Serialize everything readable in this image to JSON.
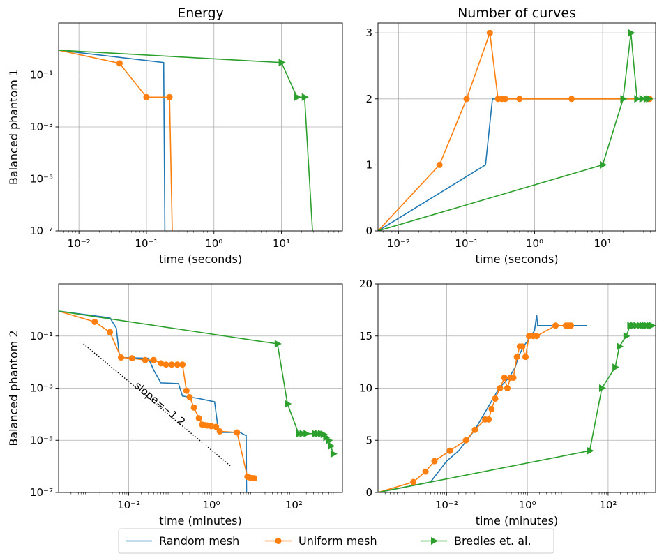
{
  "legend": {
    "placement": "bottom-center",
    "entries": [
      {
        "label": "Random mesh",
        "color": "#1f77b4",
        "marker": "none"
      },
      {
        "label": "Uniform mesh",
        "color": "#ff7f0e",
        "marker": "circle"
      },
      {
        "label": "Bredies et. al.",
        "color": "#2ca02c",
        "marker": "triangle-right"
      }
    ]
  },
  "chart_data": [
    {
      "id": "p1-energy",
      "type": "line",
      "title": "Energy",
      "ylabel": "Balanced phantom 1",
      "xlabel": "time (seconds)",
      "xscale": "log",
      "yscale": "log",
      "xlim": [
        0.005,
        80
      ],
      "ylim": [
        1e-07,
        10
      ],
      "xticks": [
        {
          "v": 0.01,
          "label": "10⁻²"
        },
        {
          "v": 0.1,
          "label": "10⁻¹"
        },
        {
          "v": 1,
          "label": "10⁰"
        },
        {
          "v": 10,
          "label": "10¹"
        }
      ],
      "yticks": [
        {
          "v": 1e-07,
          "label": "10⁻⁷"
        },
        {
          "v": 1e-05,
          "label": "10⁻⁵"
        },
        {
          "v": 0.001,
          "label": "10⁻³"
        },
        {
          "v": 0.1,
          "label": "10⁻¹"
        }
      ],
      "grid": true,
      "series": [
        {
          "name": "Random mesh",
          "color": "#1f77b4",
          "marker": "none",
          "points": [
            [
              0.005,
              0.9
            ],
            [
              0.18,
              0.3
            ],
            [
              0.19,
              1e-09
            ]
          ]
        },
        {
          "name": "Uniform mesh",
          "color": "#ff7f0e",
          "marker": "circle",
          "points": [
            [
              0.005,
              0.9
            ],
            [
              0.04,
              0.28
            ],
            [
              0.1,
              0.014
            ],
            [
              0.22,
              0.014
            ],
            [
              0.25,
              1e-09
            ]
          ]
        },
        {
          "name": "Bredies et. al.",
          "color": "#2ca02c",
          "marker": "triangle-right",
          "points": [
            [
              0.005,
              0.9
            ],
            [
              10,
              0.3
            ],
            [
              17,
              0.014
            ],
            [
              22,
              0.014
            ],
            [
              32,
              1e-09
            ]
          ]
        }
      ]
    },
    {
      "id": "p1-curves",
      "type": "line",
      "title": "Number of curves",
      "ylabel": "",
      "xlabel": "time (seconds)",
      "xscale": "log",
      "yscale": "linear",
      "xlim": [
        0.005,
        60
      ],
      "ylim": [
        0,
        3.15
      ],
      "xticks": [
        {
          "v": 0.01,
          "label": "10⁻²"
        },
        {
          "v": 0.1,
          "label": "10⁻¹"
        },
        {
          "v": 1,
          "label": "10⁰"
        },
        {
          "v": 10,
          "label": "10¹"
        }
      ],
      "yticks": [
        {
          "v": 0,
          "label": "0"
        },
        {
          "v": 1,
          "label": "1"
        },
        {
          "v": 2,
          "label": "2"
        },
        {
          "v": 3,
          "label": "3"
        }
      ],
      "grid": true,
      "series": [
        {
          "name": "Random mesh",
          "color": "#1f77b4",
          "marker": "none",
          "points": [
            [
              0.005,
              0
            ],
            [
              0.19,
              1
            ],
            [
              0.24,
              2
            ],
            [
              50,
              2
            ]
          ]
        },
        {
          "name": "Uniform mesh",
          "color": "#ff7f0e",
          "marker": "circle",
          "points": [
            [
              0.005,
              0
            ],
            [
              0.04,
              1
            ],
            [
              0.1,
              2
            ],
            [
              0.22,
              3
            ],
            [
              0.29,
              2
            ],
            [
              0.33,
              2
            ],
            [
              0.37,
              2
            ],
            [
              0.6,
              2
            ],
            [
              3.5,
              2
            ],
            [
              47,
              2
            ],
            [
              49,
              2
            ]
          ]
        },
        {
          "name": "Bredies et. al.",
          "color": "#2ca02c",
          "marker": "triangle-right",
          "points": [
            [
              0.005,
              0
            ],
            [
              10,
              1
            ],
            [
              20,
              2
            ],
            [
              26,
              3
            ],
            [
              32,
              2
            ],
            [
              38,
              2
            ],
            [
              44,
              2
            ],
            [
              48,
              2
            ]
          ]
        }
      ]
    },
    {
      "id": "p2-energy",
      "type": "line",
      "title": "",
      "ylabel": "Balanced phantom 2",
      "xlabel": "time (minutes)",
      "xscale": "log",
      "yscale": "log",
      "xlim": [
        0.0002,
        1500
      ],
      "ylim": [
        1e-07,
        10
      ],
      "xticks": [
        {
          "v": 0.01,
          "label": "10⁻²"
        },
        {
          "v": 1,
          "label": "10⁰"
        },
        {
          "v": 100,
          "label": "10²"
        }
      ],
      "yticks": [
        {
          "v": 1e-07,
          "label": "10⁻⁷"
        },
        {
          "v": 1e-05,
          "label": "10⁻⁵"
        },
        {
          "v": 0.001,
          "label": "10⁻³"
        },
        {
          "v": 0.1,
          "label": "10⁻¹"
        }
      ],
      "grid": true,
      "annotation": {
        "text": "slope=−1.2",
        "line_from": [
          0.0008,
          0.05
        ],
        "line_to": [
          3,
          1e-06
        ],
        "label_at": [
          0.05,
          0.0002
        ]
      },
      "series": [
        {
          "name": "Random mesh",
          "color": "#1f77b4",
          "marker": "none",
          "points": [
            [
              0.0002,
              0.9
            ],
            [
              0.0035,
              0.5
            ],
            [
              0.005,
              0.2
            ],
            [
              0.006,
              0.015
            ],
            [
              0.03,
              0.014
            ],
            [
              0.04,
              0.005
            ],
            [
              0.06,
              0.0016
            ],
            [
              0.16,
              0.0015
            ],
            [
              0.2,
              0.0005
            ],
            [
              0.5,
              0.0004
            ],
            [
              1.2,
              0.0003
            ],
            [
              1.5,
              2e-05
            ],
            [
              5,
              2e-05
            ],
            [
              7,
              1.5e-05
            ],
            [
              7.2,
              1e-08
            ]
          ]
        },
        {
          "name": "Uniform mesh",
          "color": "#ff7f0e",
          "marker": "circle",
          "points": [
            [
              0.0002,
              0.9
            ],
            [
              0.0015,
              0.35
            ],
            [
              0.0035,
              0.14
            ],
            [
              0.0065,
              0.015
            ],
            [
              0.012,
              0.014
            ],
            [
              0.025,
              0.012
            ],
            [
              0.04,
              0.012
            ],
            [
              0.06,
              0.009
            ],
            [
              0.08,
              0.008
            ],
            [
              0.11,
              0.008
            ],
            [
              0.15,
              0.008
            ],
            [
              0.2,
              0.008
            ],
            [
              0.25,
              0.0008
            ],
            [
              0.3,
              0.00045
            ],
            [
              0.38,
              0.00018
            ],
            [
              0.5,
              7e-05
            ],
            [
              0.6,
              4e-05
            ],
            [
              0.7,
              3.8e-05
            ],
            [
              0.8,
              3.7e-05
            ],
            [
              1.0,
              3.5e-05
            ],
            [
              1.3,
              3.3e-05
            ],
            [
              1.6,
              2.2e-05
            ],
            [
              4.2,
              2e-05
            ],
            [
              7.5,
              4e-07
            ],
            [
              9,
              3.6e-07
            ],
            [
              10,
              3.5e-07
            ],
            [
              11,
              3.5e-07
            ]
          ]
        },
        {
          "name": "Bredies et. al.",
          "color": "#2ca02c",
          "marker": "triangle-right",
          "points": [
            [
              0.0002,
              0.9
            ],
            [
              40,
              0.05
            ],
            [
              70,
              0.00025
            ],
            [
              130,
              1.8e-05
            ],
            [
              160,
              1.8e-05
            ],
            [
              200,
              1.8e-05
            ],
            [
              320,
              1.8e-05
            ],
            [
              380,
              1.8e-05
            ],
            [
              450,
              1.8e-05
            ],
            [
              520,
              1.7e-05
            ],
            [
              600,
              1.3e-05
            ],
            [
              700,
              1e-05
            ],
            [
              780,
              6e-06
            ],
            [
              900,
              3e-06
            ]
          ]
        }
      ]
    },
    {
      "id": "p2-curves",
      "type": "line",
      "title": "",
      "ylabel": "",
      "xlabel": "time (minutes)",
      "xscale": "log",
      "yscale": "linear",
      "xlim": [
        0.0002,
        1500
      ],
      "ylim": [
        0,
        20
      ],
      "xticks": [
        {
          "v": 0.01,
          "label": "10⁻²"
        },
        {
          "v": 1,
          "label": "10⁰"
        },
        {
          "v": 100,
          "label": "10²"
        }
      ],
      "yticks": [
        {
          "v": 0,
          "label": "0"
        },
        {
          "v": 5,
          "label": "5"
        },
        {
          "v": 10,
          "label": "10"
        },
        {
          "v": 15,
          "label": "15"
        },
        {
          "v": 20,
          "label": "20"
        }
      ],
      "grid": true,
      "series": [
        {
          "name": "Random mesh",
          "color": "#1f77b4",
          "marker": "none",
          "points": [
            [
              0.0002,
              0
            ],
            [
              0.004,
              1
            ],
            [
              0.01,
              3
            ],
            [
              0.02,
              4
            ],
            [
              0.05,
              6
            ],
            [
              0.1,
              8
            ],
            [
              0.2,
              10
            ],
            [
              0.35,
              11
            ],
            [
              0.5,
              12
            ],
            [
              0.6,
              13
            ],
            [
              0.8,
              14
            ],
            [
              1.0,
              14.5
            ],
            [
              1.2,
              15
            ],
            [
              1.5,
              15.5
            ],
            [
              1.7,
              17
            ],
            [
              1.8,
              16
            ],
            [
              5,
              16
            ],
            [
              30,
              16
            ]
          ]
        },
        {
          "name": "Uniform mesh",
          "color": "#ff7f0e",
          "marker": "circle",
          "points": [
            [
              0.0002,
              0
            ],
            [
              0.0015,
              1
            ],
            [
              0.003,
              2
            ],
            [
              0.005,
              3
            ],
            [
              0.012,
              4
            ],
            [
              0.03,
              5
            ],
            [
              0.05,
              6
            ],
            [
              0.09,
              7
            ],
            [
              0.11,
              7
            ],
            [
              0.13,
              8
            ],
            [
              0.16,
              9
            ],
            [
              0.21,
              10
            ],
            [
              0.27,
              11
            ],
            [
              0.32,
              10
            ],
            [
              0.38,
              11
            ],
            [
              0.45,
              11
            ],
            [
              0.55,
              13
            ],
            [
              0.65,
              14
            ],
            [
              0.75,
              14
            ],
            [
              0.9,
              13
            ],
            [
              1.1,
              15
            ],
            [
              1.4,
              15
            ],
            [
              1.7,
              15
            ],
            [
              5,
              16
            ],
            [
              9,
              16
            ],
            [
              10,
              16
            ],
            [
              11,
              16
            ],
            [
              12,
              16
            ]
          ]
        },
        {
          "name": "Bredies et. al.",
          "color": "#2ca02c",
          "marker": "triangle-right",
          "points": [
            [
              0.0002,
              0
            ],
            [
              35,
              4
            ],
            [
              70,
              10
            ],
            [
              150,
              12
            ],
            [
              190,
              14
            ],
            [
              280,
              15
            ],
            [
              350,
              16
            ],
            [
              420,
              16
            ],
            [
              500,
              16
            ],
            [
              600,
              16
            ],
            [
              700,
              16
            ],
            [
              800,
              16
            ],
            [
              900,
              16
            ],
            [
              1050,
              16
            ],
            [
              1200,
              16
            ]
          ]
        }
      ]
    }
  ]
}
